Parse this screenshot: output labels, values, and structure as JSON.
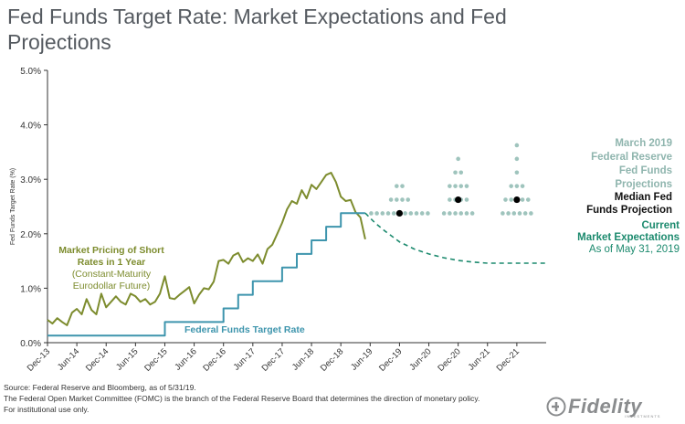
{
  "title": "Fed Funds Target Rate: Market Expectations and Fed Projections",
  "logo": {
    "name": "Fidelity",
    "sub": "INVESTMENTS"
  },
  "footer": {
    "source": "Source: Federal Reserve and Bloomberg, as of 5/31/19.",
    "note": "The Federal Open Market Committee (FOMC) is the branch of the Federal Reserve Board that determines the direction of monetary policy.",
    "disclaimer": "For institutional use only."
  },
  "colors": {
    "market": "#7d8c2e",
    "target": "#3e95ad",
    "expectations": "#1c8a6e",
    "dots": "#9fc4bd",
    "median": "#000000",
    "dots_label": "#8fb5ae",
    "axis": "#333333"
  },
  "chart_data": {
    "type": "line",
    "title": "Fed Funds Target Rate: Market Expectations and Fed Projections",
    "ylabel": "Fed Funds Target Rate (%)",
    "ylim": [
      0,
      5
    ],
    "y_ticks": [
      "0.0%",
      "1.0%",
      "2.0%",
      "3.0%",
      "4.0%",
      "5.0%"
    ],
    "x_start": "2013-12",
    "x_end": "2022-06",
    "x_ticks": [
      "Dec-13",
      "Jun-14",
      "Dec-14",
      "Jun-15",
      "Dec-15",
      "Jun-16",
      "Dec-16",
      "Jun-17",
      "Dec-17",
      "Jun-18",
      "Dec-18",
      "Jun-19",
      "Dec-19",
      "Jun-20",
      "Dec-20",
      "Jun-21",
      "Dec-21"
    ],
    "series": [
      {
        "name": "Market Pricing of Short Rates in 1 Year",
        "annotation": [
          "Market Pricing of Short",
          "Rates in 1 Year",
          "(Constant-Maturity",
          "Eurodollar Future)"
        ],
        "style": "solid",
        "points": [
          [
            "2013-12",
            0.42
          ],
          [
            "2014-01",
            0.35
          ],
          [
            "2014-02",
            0.45
          ],
          [
            "2014-03",
            0.38
          ],
          [
            "2014-04",
            0.32
          ],
          [
            "2014-05",
            0.55
          ],
          [
            "2014-06",
            0.62
          ],
          [
            "2014-07",
            0.52
          ],
          [
            "2014-08",
            0.8
          ],
          [
            "2014-09",
            0.6
          ],
          [
            "2014-10",
            0.52
          ],
          [
            "2014-11",
            0.9
          ],
          [
            "2014-12",
            0.65
          ],
          [
            "2015-01",
            0.75
          ],
          [
            "2015-02",
            0.85
          ],
          [
            "2015-03",
            0.75
          ],
          [
            "2015-04",
            0.7
          ],
          [
            "2015-05",
            0.9
          ],
          [
            "2015-06",
            0.85
          ],
          [
            "2015-07",
            0.75
          ],
          [
            "2015-08",
            0.8
          ],
          [
            "2015-09",
            0.7
          ],
          [
            "2015-10",
            0.75
          ],
          [
            "2015-11",
            0.9
          ],
          [
            "2015-12",
            1.22
          ],
          [
            "2016-01",
            0.82
          ],
          [
            "2016-02",
            0.8
          ],
          [
            "2016-03",
            0.88
          ],
          [
            "2016-04",
            0.95
          ],
          [
            "2016-05",
            1.02
          ],
          [
            "2016-06",
            0.72
          ],
          [
            "2016-07",
            0.88
          ],
          [
            "2016-08",
            1.0
          ],
          [
            "2016-09",
            0.98
          ],
          [
            "2016-10",
            1.12
          ],
          [
            "2016-11",
            1.5
          ],
          [
            "2016-12",
            1.52
          ],
          [
            "2017-01",
            1.45
          ],
          [
            "2017-02",
            1.6
          ],
          [
            "2017-03",
            1.65
          ],
          [
            "2017-04",
            1.48
          ],
          [
            "2017-05",
            1.55
          ],
          [
            "2017-06",
            1.5
          ],
          [
            "2017-07",
            1.62
          ],
          [
            "2017-08",
            1.45
          ],
          [
            "2017-09",
            1.72
          ],
          [
            "2017-10",
            1.8
          ],
          [
            "2017-11",
            2.0
          ],
          [
            "2017-12",
            2.2
          ],
          [
            "2018-01",
            2.45
          ],
          [
            "2018-02",
            2.6
          ],
          [
            "2018-03",
            2.55
          ],
          [
            "2018-04",
            2.8
          ],
          [
            "2018-05",
            2.65
          ],
          [
            "2018-06",
            2.9
          ],
          [
            "2018-07",
            2.82
          ],
          [
            "2018-08",
            2.95
          ],
          [
            "2018-09",
            3.08
          ],
          [
            "2018-10",
            3.12
          ],
          [
            "2018-11",
            2.95
          ],
          [
            "2018-12",
            2.68
          ],
          [
            "2019-01",
            2.6
          ],
          [
            "2019-02",
            2.62
          ],
          [
            "2019-03",
            2.4
          ],
          [
            "2019-04",
            2.3
          ],
          [
            "2019-05",
            1.9
          ]
        ]
      },
      {
        "name": "Federal Funds Target Rate",
        "style": "step",
        "points": [
          [
            "2013-12",
            0.13
          ],
          [
            "2015-12",
            0.13
          ],
          [
            "2015-12",
            0.38
          ],
          [
            "2016-12",
            0.38
          ],
          [
            "2016-12",
            0.63
          ],
          [
            "2017-03",
            0.63
          ],
          [
            "2017-03",
            0.88
          ],
          [
            "2017-06",
            0.88
          ],
          [
            "2017-06",
            1.13
          ],
          [
            "2017-12",
            1.13
          ],
          [
            "2017-12",
            1.38
          ],
          [
            "2018-03",
            1.38
          ],
          [
            "2018-03",
            1.63
          ],
          [
            "2018-06",
            1.63
          ],
          [
            "2018-06",
            1.88
          ],
          [
            "2018-09",
            1.88
          ],
          [
            "2018-09",
            2.13
          ],
          [
            "2018-12",
            2.13
          ],
          [
            "2018-12",
            2.38
          ],
          [
            "2019-05",
            2.38
          ]
        ]
      },
      {
        "name": "Current Market Expectations",
        "annotation": [
          "Current",
          "Market Expectations",
          "As of May 31, 2019"
        ],
        "style": "dashed",
        "points": [
          [
            "2019-05",
            2.38
          ],
          [
            "2019-07",
            2.2
          ],
          [
            "2019-09",
            2.05
          ],
          [
            "2019-12",
            1.85
          ],
          [
            "2020-03",
            1.72
          ],
          [
            "2020-06",
            1.63
          ],
          [
            "2020-09",
            1.56
          ],
          [
            "2020-12",
            1.51
          ],
          [
            "2021-03",
            1.48
          ],
          [
            "2021-06",
            1.46
          ],
          [
            "2021-09",
            1.46
          ],
          [
            "2021-12",
            1.46
          ],
          [
            "2022-06",
            1.46
          ]
        ]
      }
    ],
    "dot_plot": {
      "name": "March 2019 Federal Reserve Fed Funds Projections",
      "annotation": [
        "March 2019",
        "Federal Reserve",
        "Fed Funds",
        "Projections"
      ],
      "median_label": [
        "Median Fed",
        "Funds Projection"
      ],
      "groups": [
        {
          "x": "2019-12",
          "median": 2.375,
          "rows": [
            [
              2.875,
              2
            ],
            [
              2.625,
              4
            ],
            [
              2.375,
              11
            ]
          ]
        },
        {
          "x": "2020-12",
          "median": 2.625,
          "rows": [
            [
              3.375,
              1
            ],
            [
              3.125,
              2
            ],
            [
              2.875,
              4
            ],
            [
              2.625,
              4
            ],
            [
              2.375,
              6
            ]
          ]
        },
        {
          "x": "2021-12",
          "median": 2.625,
          "rows": [
            [
              3.625,
              1
            ],
            [
              3.375,
              1
            ],
            [
              3.125,
              1
            ],
            [
              2.875,
              3
            ],
            [
              2.625,
              5
            ],
            [
              2.375,
              6
            ]
          ]
        }
      ]
    },
    "labels": {
      "target_rate": "Federal Funds Target Rate"
    },
    "grid": false
  }
}
